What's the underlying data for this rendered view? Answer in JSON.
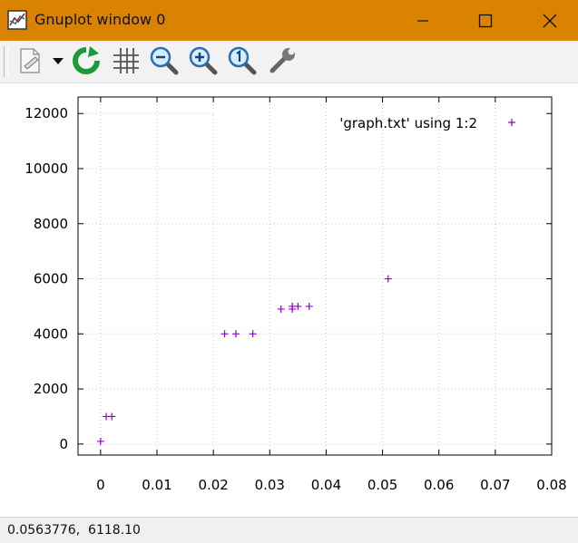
{
  "window": {
    "title": "Gnuplot window 0",
    "titlebar_color": "#d98300",
    "controls": [
      "minimize-icon",
      "maximize-icon",
      "close-icon"
    ]
  },
  "toolbar": {
    "icons": [
      "copy-to-clipboard-icon",
      "dropdown-arrow-icon",
      "replot-icon",
      "grid-icon",
      "zoom-out-icon",
      "zoom-in-icon",
      "unzoom-icon",
      "options-wrench-icon"
    ]
  },
  "status": {
    "coords": "0.0563776,  6118.10"
  },
  "chart_data": {
    "type": "scatter",
    "x_ticks": [
      "0",
      "0.01",
      "0.02",
      "0.03",
      "0.04",
      "0.05",
      "0.06",
      "0.07",
      "0.08"
    ],
    "y_ticks": [
      "0",
      "2000",
      "4000",
      "6000",
      "8000",
      "10000",
      "12000"
    ],
    "xlim": [
      -0.004,
      0.08
    ],
    "ylim": [
      -400,
      12600
    ],
    "grid": true,
    "legend_position": "top-right",
    "series": [
      {
        "name": "'graph.txt' using 1:2",
        "marker": "+",
        "color": "#9400d3",
        "x": [
          0,
          0.001,
          0.002,
          0.022,
          0.024,
          0.027,
          0.032,
          0.034,
          0.034,
          0.035,
          0.037,
          0.051
        ],
        "y": [
          100,
          1000,
          1000,
          4000,
          4000,
          4000,
          4900,
          4900,
          5000,
          5000,
          5000,
          6000
        ]
      }
    ]
  }
}
